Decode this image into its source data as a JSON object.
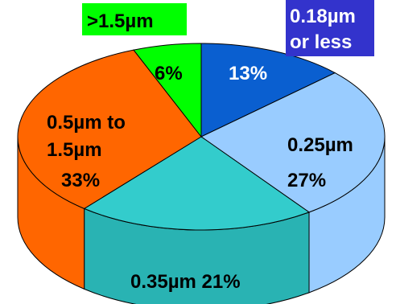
{
  "chart_data": {
    "type": "pie",
    "style": "3d",
    "slices": [
      {
        "label": "0.18µm or less",
        "value": 13,
        "color": "#0a5fd0",
        "side_color": "#0849a6"
      },
      {
        "label": "0.25µm",
        "value": 27,
        "color": "#99ccff",
        "side_color": "#99ccff"
      },
      {
        "label": "0.35µm",
        "value": 21,
        "color": "#33cccc",
        "side_color": "#29b3b3"
      },
      {
        "label": "0.5µm to 1.5µm",
        "value": 33,
        "color": "#ff6600",
        "side_color": "#ff6600"
      },
      {
        "label": ">1.5µm",
        "value": 6,
        "color": "#00ff00",
        "side_color": "#00cc00"
      }
    ],
    "labels": {
      "s018_line1": "0.18µm",
      "s018_line2": "or less",
      "s018_pct": "13%",
      "s025_name": "0.25µm",
      "s025_pct": "27%",
      "s035_text": "0.35µm 21%",
      "s05_line1": "0.5µm to",
      "s05_line2": "1.5µm",
      "s05_pct": "33%",
      "s15_name": ">1.5µm",
      "s15_pct": "6%"
    }
  }
}
